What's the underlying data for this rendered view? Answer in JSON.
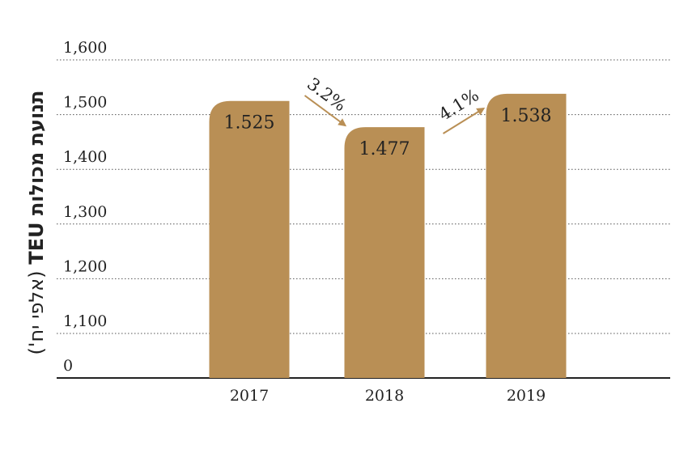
{
  "chart_data": {
    "type": "bar",
    "y_label": "תנועת מכולות TEU",
    "y_label_note": "(אלפי יח')",
    "categories": [
      "2017",
      "2018",
      "2019"
    ],
    "values": [
      1525,
      1477,
      1538
    ],
    "value_labels": [
      "1.525",
      "1.477",
      "1.538"
    ],
    "color": "#b98f55",
    "ylim": [
      0,
      1600
    ],
    "yticks": [
      0,
      {
        "value": 1100,
        "label": "1,100"
      },
      {
        "value": 1200,
        "label": "1,200"
      },
      {
        "value": 1300,
        "label": "1,300"
      },
      {
        "value": 1400,
        "label": "1,400"
      },
      {
        "value": 1500,
        "label": "1,500"
      },
      {
        "value": 1600,
        "label": "1,600"
      }
    ],
    "axis_break": true,
    "grid": true,
    "annotations": [
      {
        "text": "3.2%",
        "direction": "down"
      },
      {
        "text": "4.1%",
        "direction": "up"
      }
    ]
  }
}
